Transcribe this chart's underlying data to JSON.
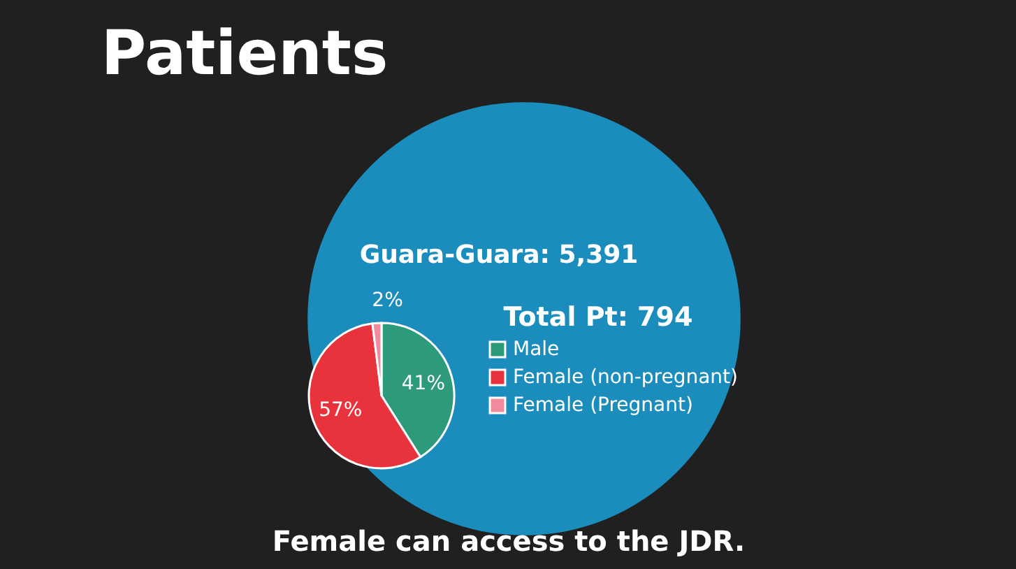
{
  "chart_data": {
    "type": "pie",
    "title": "Patients",
    "annotations": [
      "Guara-Guara: 5,391",
      "Total Pt: 794",
      "Female can access to the JDR."
    ],
    "categories": [
      "Male",
      "Female (non-pregnant)",
      "Female (Pregnant)"
    ],
    "values": [
      41,
      57,
      2
    ],
    "value_labels": [
      "41%",
      "57%",
      "2%"
    ],
    "colors": [
      "#2e9a7c",
      "#e8333c",
      "#f08a9c"
    ],
    "legend": "right"
  }
}
